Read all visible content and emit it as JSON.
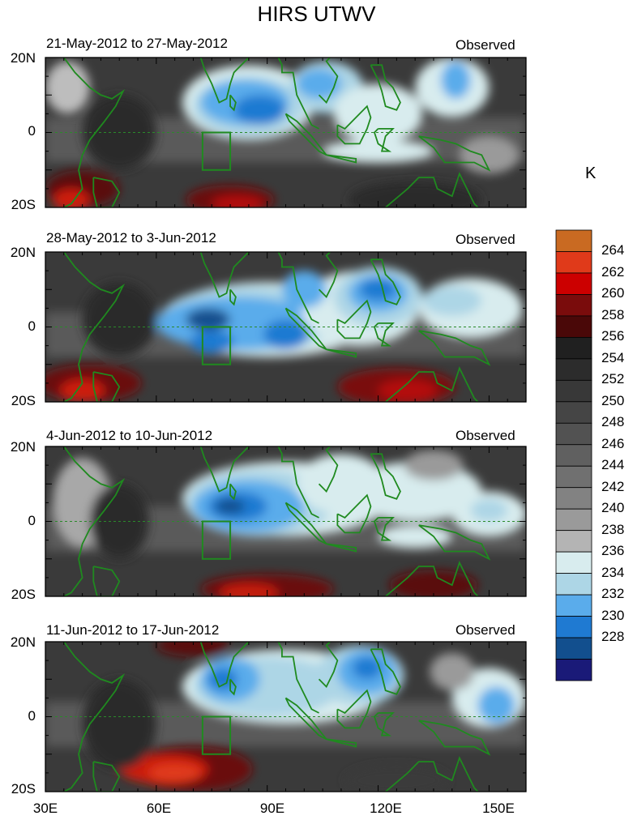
{
  "title": "HIRS UTWV",
  "unit": "K",
  "panels": [
    {
      "date_range": "21-May-2012 to 27-May-2012",
      "tag": "Observed"
    },
    {
      "date_range": "28-May-2012 to 3-Jun-2012",
      "tag": "Observed"
    },
    {
      "date_range": "4-Jun-2012 to 10-Jun-2012",
      "tag": "Observed"
    },
    {
      "date_range": "11-Jun-2012 to 17-Jun-2012",
      "tag": "Observed"
    }
  ],
  "lat_ticks": [
    "20N",
    "0",
    "20S"
  ],
  "lon_ticks": [
    "30E",
    "60E",
    "90E",
    "120E",
    "150E"
  ],
  "colorbar": {
    "labels": [
      "264",
      "262",
      "260",
      "258",
      "256",
      "254",
      "252",
      "250",
      "248",
      "246",
      "244",
      "242",
      "240",
      "238",
      "236",
      "234",
      "232",
      "230",
      "228"
    ],
    "colors": [
      "#c96a22",
      "#e03a1a",
      "#cc0000",
      "#7a0c0c",
      "#4a0808",
      "#202020",
      "#2c2c2c",
      "#383838",
      "#454545",
      "#525252",
      "#606060",
      "#707070",
      "#828282",
      "#9a9a9a",
      "#b4b4b4",
      "#d8ecee",
      "#add6e6",
      "#5aaceb",
      "#1f7ad2",
      "#124f8e",
      "#1a1a78"
    ]
  },
  "chart_data": {
    "type": "heatmap",
    "title": "HIRS UTWV",
    "variable": "UTWV",
    "units": "K",
    "lon_range": [
      30,
      160
    ],
    "lat_range": [
      -20,
      20
    ],
    "levels": [
      228,
      230,
      232,
      234,
      236,
      238,
      240,
      242,
      244,
      246,
      248,
      250,
      252,
      254,
      256,
      258,
      260,
      262,
      264
    ],
    "frames": [
      {
        "label": "21-May-2012 to 27-May-2012",
        "moist_core_lon": [
          72,
          102
        ],
        "min_value": 230
      },
      {
        "label": "28-May-2012 to 3-Jun-2012",
        "moist_core_lon": [
          62,
          125
        ],
        "min_value": 228
      },
      {
        "label": "4-Jun-2012 to 10-Jun-2012",
        "moist_core_lon": [
          70,
          95
        ],
        "min_value": 230
      },
      {
        "label": "11-Jun-2012 to 17-Jun-2012",
        "moist_core_lon": [
          70,
          125
        ],
        "min_value": 230
      }
    ]
  }
}
